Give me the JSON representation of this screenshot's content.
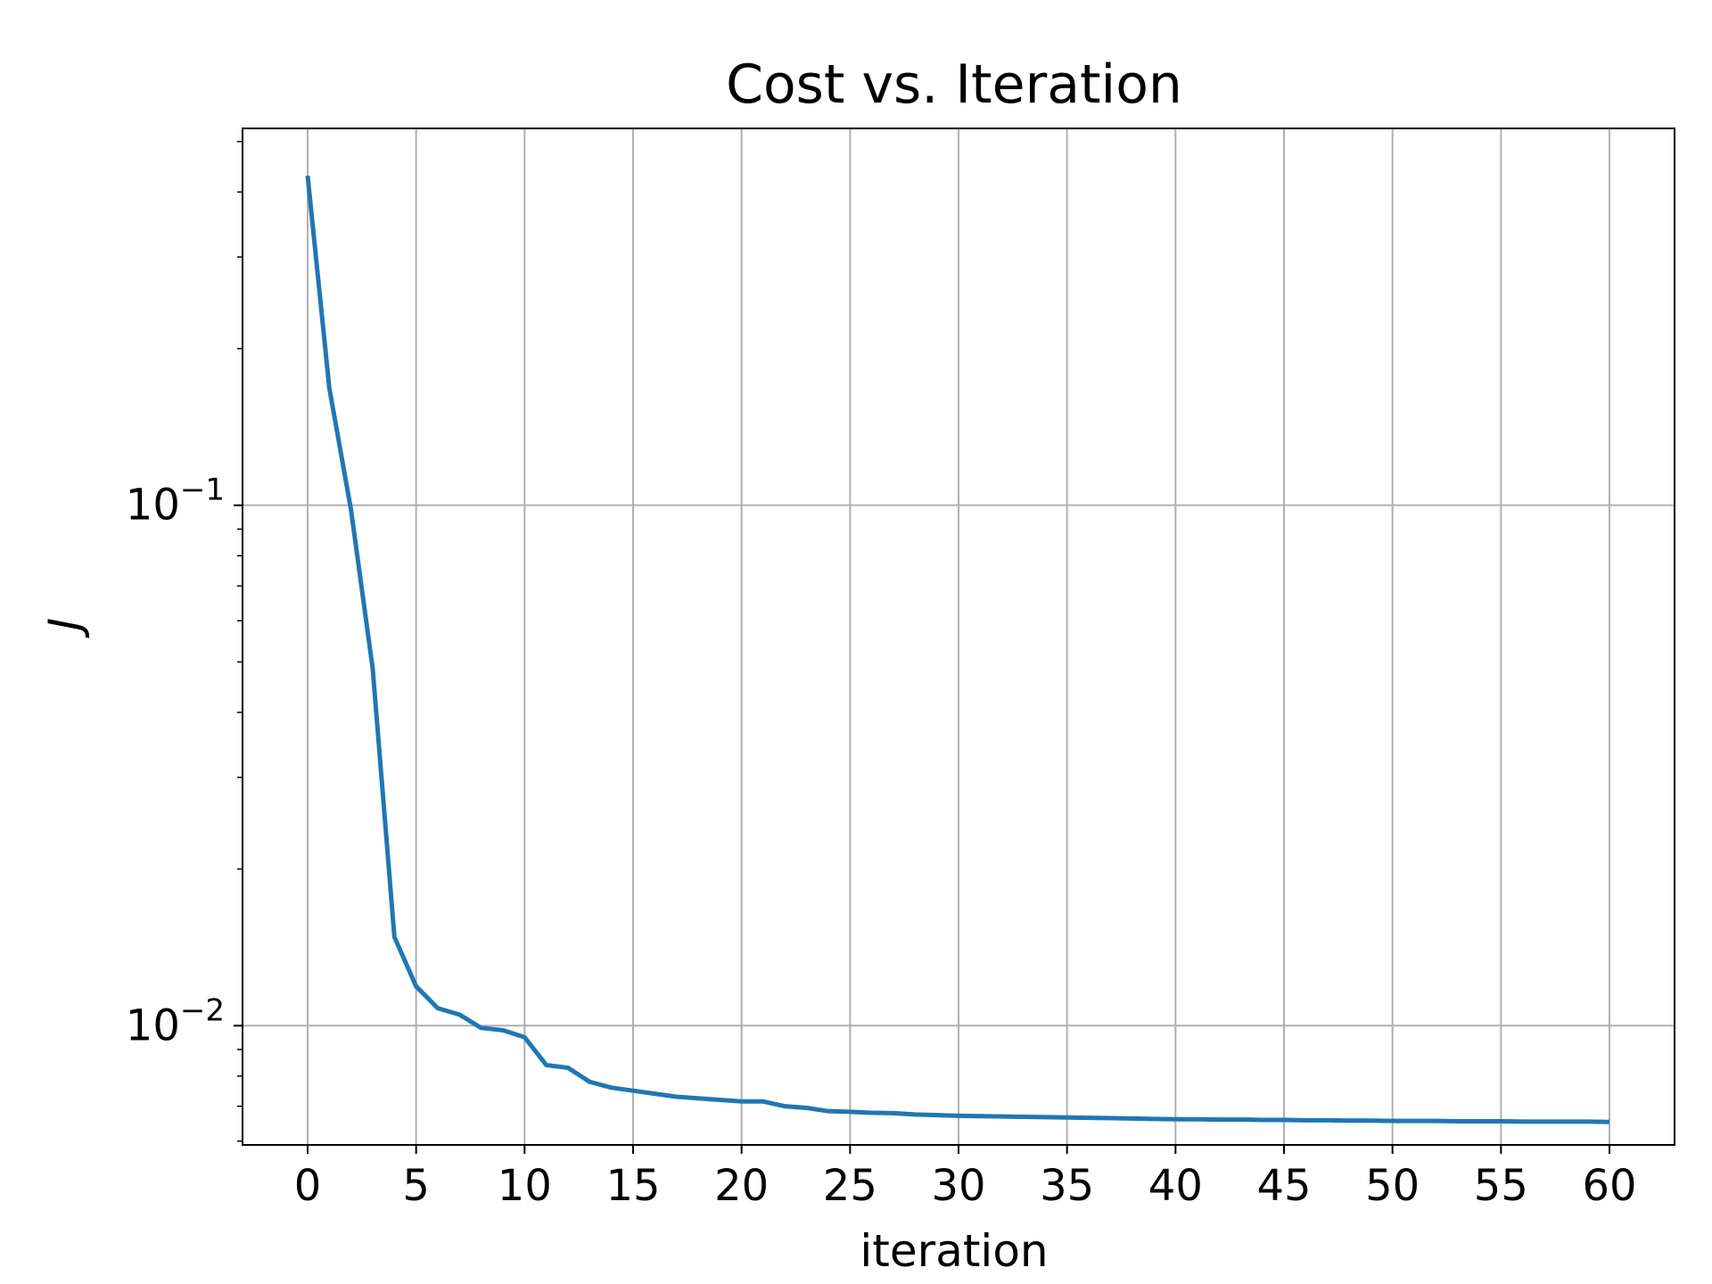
{
  "chart_data": {
    "type": "line",
    "title": "Cost vs. Iteration",
    "xlabel": "iteration",
    "ylabel": "J",
    "yscale": "log",
    "grid": true,
    "xlim": [
      -3,
      63
    ],
    "ylim": [
      0.0059,
      0.53
    ],
    "x_ticks": [
      0,
      5,
      10,
      15,
      20,
      25,
      30,
      35,
      40,
      45,
      50,
      55,
      60
    ],
    "y_ticks": [
      {
        "value": 0.1,
        "base": "10",
        "exponent": "−1"
      },
      {
        "value": 0.01,
        "base": "10",
        "exponent": "−2"
      }
    ],
    "colors": {
      "line": "#1f77b4",
      "grid": "#b0b0b0"
    },
    "series": [
      {
        "x": [
          0,
          1,
          2,
          3,
          4,
          5,
          6,
          7,
          8,
          9,
          10,
          11,
          12,
          13,
          14,
          15,
          16,
          17,
          18,
          19,
          20,
          21,
          22,
          23,
          24,
          25,
          26,
          27,
          28,
          29,
          30,
          31,
          32,
          33,
          34,
          35,
          36,
          37,
          38,
          39,
          40,
          41,
          42,
          43,
          44,
          45,
          46,
          47,
          48,
          49,
          50,
          51,
          52,
          53,
          54,
          55,
          56,
          57,
          58,
          59,
          60
        ],
        "values": [
          0.43,
          0.168,
          0.098,
          0.0485,
          0.0148,
          0.0119,
          0.0108,
          0.0105,
          0.0099,
          0.0098,
          0.0095,
          0.0084,
          0.0083,
          0.0078,
          0.0076,
          0.0075,
          0.0074,
          0.0073,
          0.00725,
          0.0072,
          0.00715,
          0.00715,
          0.007,
          0.00695,
          0.00685,
          0.00683,
          0.0068,
          0.00679,
          0.00675,
          0.00673,
          0.00671,
          0.0067,
          0.00669,
          0.00668,
          0.00667,
          0.00666,
          0.00665,
          0.00664,
          0.00663,
          0.00662,
          0.00661,
          0.00661,
          0.0066,
          0.0066,
          0.00659,
          0.00659,
          0.00658,
          0.00658,
          0.00657,
          0.00657,
          0.00656,
          0.00656,
          0.00656,
          0.00655,
          0.00655,
          0.00655,
          0.00654,
          0.00654,
          0.00654,
          0.00654,
          0.00653
        ]
      }
    ]
  }
}
